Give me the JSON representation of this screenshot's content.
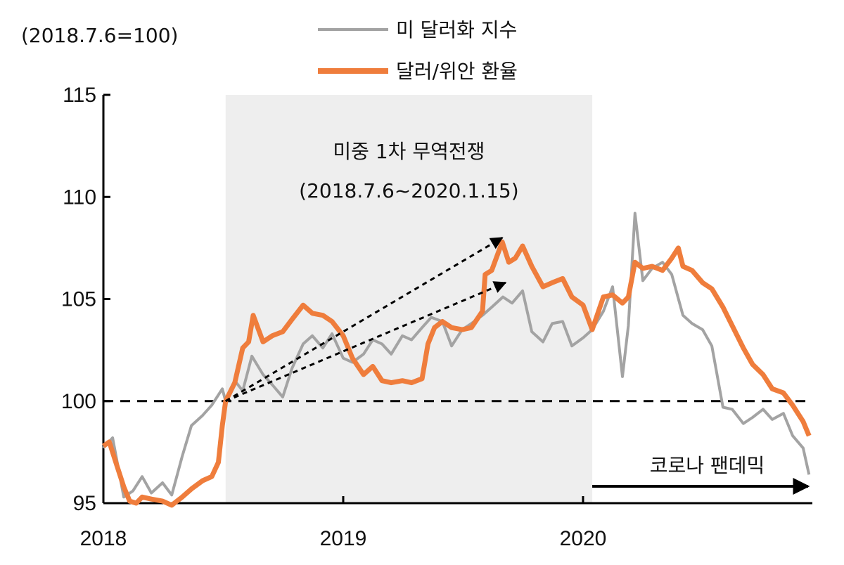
{
  "chart_data": {
    "type": "line",
    "unit_label": "(2018.7.6=100)",
    "ylim": [
      95,
      115
    ],
    "yticks": [
      95,
      100,
      105,
      110,
      115
    ],
    "xlim": [
      "2018-01-01",
      "2020-12-15"
    ],
    "xticks": [
      {
        "date": "2018-01-01",
        "label": "2018"
      },
      {
        "date": "2019-01-01",
        "label": "2019"
      },
      {
        "date": "2020-01-01",
        "label": "2020"
      }
    ],
    "legend_position": "top-center",
    "reference_line": {
      "y": 100,
      "style": "dashed"
    },
    "shaded_period": {
      "start": "2018-07-06",
      "end": "2020-01-15",
      "label_line1": "미중 1차 무역전쟁",
      "label_line2": "(2018.7.6~2020.1.15)"
    },
    "arrows": [
      {
        "from": [
          "2018-07-06",
          100
        ],
        "to": [
          "2019-08-31",
          108
        ]
      },
      {
        "from": [
          "2018-07-06",
          100
        ],
        "to": [
          "2019-09-05",
          105.8
        ]
      }
    ],
    "period_arrow": {
      "label": "코로나 팬데믹",
      "from": "2020-01-15",
      "to": "2020-12-15"
    },
    "series": [
      {
        "name": "미 달러화 지수",
        "color": "#a3a3a3",
        "points": [
          [
            "2018-01-01",
            97.7
          ],
          [
            "2018-01-15",
            98.2
          ],
          [
            "2018-02-01",
            95.3
          ],
          [
            "2018-02-15",
            95.6
          ],
          [
            "2018-03-01",
            96.3
          ],
          [
            "2018-03-15",
            95.5
          ],
          [
            "2018-04-01",
            96.0
          ],
          [
            "2018-04-15",
            95.4
          ],
          [
            "2018-05-01",
            97.3
          ],
          [
            "2018-05-15",
            98.8
          ],
          [
            "2018-06-01",
            99.3
          ],
          [
            "2018-06-15",
            99.8
          ],
          [
            "2018-07-01",
            100.6
          ],
          [
            "2018-07-06",
            100.0
          ],
          [
            "2018-07-20",
            101.0
          ],
          [
            "2018-08-01",
            100.5
          ],
          [
            "2018-08-15",
            102.2
          ],
          [
            "2018-09-01",
            101.3
          ],
          [
            "2018-09-15",
            100.8
          ],
          [
            "2018-10-01",
            100.2
          ],
          [
            "2018-10-15",
            101.6
          ],
          [
            "2018-11-01",
            102.8
          ],
          [
            "2018-11-15",
            103.2
          ],
          [
            "2018-12-01",
            102.6
          ],
          [
            "2018-12-15",
            103.3
          ],
          [
            "2019-01-01",
            102.1
          ],
          [
            "2019-01-15",
            101.9
          ],
          [
            "2019-02-01",
            102.3
          ],
          [
            "2019-02-15",
            103.0
          ],
          [
            "2019-03-01",
            102.8
          ],
          [
            "2019-03-15",
            102.3
          ],
          [
            "2019-04-01",
            103.2
          ],
          [
            "2019-04-15",
            103.0
          ],
          [
            "2019-05-01",
            103.6
          ],
          [
            "2019-05-15",
            104.1
          ],
          [
            "2019-06-01",
            103.9
          ],
          [
            "2019-06-15",
            102.7
          ],
          [
            "2019-07-01",
            103.5
          ],
          [
            "2019-07-15",
            103.8
          ],
          [
            "2019-08-01",
            104.2
          ],
          [
            "2019-08-15",
            104.6
          ],
          [
            "2019-09-01",
            105.1
          ],
          [
            "2019-09-15",
            104.8
          ],
          [
            "2019-10-01",
            105.4
          ],
          [
            "2019-10-15",
            103.4
          ],
          [
            "2019-11-01",
            102.9
          ],
          [
            "2019-11-15",
            103.8
          ],
          [
            "2019-12-01",
            103.9
          ],
          [
            "2019-12-15",
            102.7
          ],
          [
            "2020-01-01",
            103.1
          ],
          [
            "2020-01-15",
            103.5
          ],
          [
            "2020-02-01",
            104.4
          ],
          [
            "2020-02-15",
            105.6
          ],
          [
            "2020-03-01",
            101.2
          ],
          [
            "2020-03-10",
            103.7
          ],
          [
            "2020-03-20",
            109.2
          ],
          [
            "2020-04-01",
            105.9
          ],
          [
            "2020-04-15",
            106.5
          ],
          [
            "2020-05-01",
            106.8
          ],
          [
            "2020-05-15",
            106.2
          ],
          [
            "2020-06-01",
            104.2
          ],
          [
            "2020-06-15",
            103.8
          ],
          [
            "2020-07-01",
            103.5
          ],
          [
            "2020-07-15",
            102.7
          ],
          [
            "2020-08-01",
            99.7
          ],
          [
            "2020-08-15",
            99.6
          ],
          [
            "2020-09-01",
            98.9
          ],
          [
            "2020-09-15",
            99.2
          ],
          [
            "2020-10-01",
            99.6
          ],
          [
            "2020-10-15",
            99.1
          ],
          [
            "2020-11-01",
            99.4
          ],
          [
            "2020-11-15",
            98.3
          ],
          [
            "2020-12-01",
            97.7
          ],
          [
            "2020-12-10",
            96.4
          ]
        ]
      },
      {
        "name": "달러/위안 환율",
        "color": "#ef7d3c",
        "points": [
          [
            "2018-01-01",
            97.8
          ],
          [
            "2018-01-10",
            98.0
          ],
          [
            "2018-01-20",
            97.0
          ],
          [
            "2018-02-01",
            95.8
          ],
          [
            "2018-02-10",
            95.1
          ],
          [
            "2018-02-20",
            95.0
          ],
          [
            "2018-03-01",
            95.3
          ],
          [
            "2018-03-15",
            95.2
          ],
          [
            "2018-04-01",
            95.1
          ],
          [
            "2018-04-15",
            94.9
          ],
          [
            "2018-05-01",
            95.3
          ],
          [
            "2018-05-15",
            95.7
          ],
          [
            "2018-06-01",
            96.1
          ],
          [
            "2018-06-15",
            96.3
          ],
          [
            "2018-06-25",
            97.0
          ],
          [
            "2018-07-01",
            98.8
          ],
          [
            "2018-07-06",
            100.0
          ],
          [
            "2018-07-20",
            100.9
          ],
          [
            "2018-08-01",
            102.6
          ],
          [
            "2018-08-10",
            102.9
          ],
          [
            "2018-08-17",
            104.2
          ],
          [
            "2018-09-01",
            102.9
          ],
          [
            "2018-09-15",
            103.2
          ],
          [
            "2018-10-01",
            103.4
          ],
          [
            "2018-10-15",
            104.0
          ],
          [
            "2018-11-01",
            104.7
          ],
          [
            "2018-11-15",
            104.3
          ],
          [
            "2018-12-01",
            104.2
          ],
          [
            "2018-12-15",
            103.9
          ],
          [
            "2019-01-01",
            103.2
          ],
          [
            "2019-01-15",
            102.1
          ],
          [
            "2019-02-01",
            101.3
          ],
          [
            "2019-02-15",
            101.7
          ],
          [
            "2019-03-01",
            101.0
          ],
          [
            "2019-03-15",
            100.9
          ],
          [
            "2019-04-01",
            101.0
          ],
          [
            "2019-04-15",
            100.9
          ],
          [
            "2019-05-01",
            101.1
          ],
          [
            "2019-05-10",
            102.8
          ],
          [
            "2019-05-20",
            103.6
          ],
          [
            "2019-06-01",
            103.9
          ],
          [
            "2019-06-15",
            103.6
          ],
          [
            "2019-07-01",
            103.5
          ],
          [
            "2019-07-15",
            103.6
          ],
          [
            "2019-08-01",
            104.4
          ],
          [
            "2019-08-05",
            106.2
          ],
          [
            "2019-08-15",
            106.4
          ],
          [
            "2019-08-31",
            107.8
          ],
          [
            "2019-09-10",
            106.8
          ],
          [
            "2019-09-20",
            107.0
          ],
          [
            "2019-10-01",
            107.6
          ],
          [
            "2019-10-15",
            106.6
          ],
          [
            "2019-11-01",
            105.6
          ],
          [
            "2019-11-15",
            105.8
          ],
          [
            "2019-12-01",
            106.0
          ],
          [
            "2019-12-15",
            105.1
          ],
          [
            "2020-01-01",
            104.7
          ],
          [
            "2020-01-15",
            103.5
          ],
          [
            "2020-02-01",
            105.1
          ],
          [
            "2020-02-15",
            105.2
          ],
          [
            "2020-03-01",
            104.8
          ],
          [
            "2020-03-10",
            105.1
          ],
          [
            "2020-03-20",
            106.8
          ],
          [
            "2020-04-01",
            106.5
          ],
          [
            "2020-04-15",
            106.6
          ],
          [
            "2020-05-01",
            106.4
          ],
          [
            "2020-05-15",
            107.0
          ],
          [
            "2020-05-25",
            107.5
          ],
          [
            "2020-06-01",
            106.6
          ],
          [
            "2020-06-15",
            106.4
          ],
          [
            "2020-07-01",
            105.8
          ],
          [
            "2020-07-15",
            105.5
          ],
          [
            "2020-08-01",
            104.6
          ],
          [
            "2020-08-15",
            103.7
          ],
          [
            "2020-09-01",
            102.6
          ],
          [
            "2020-09-15",
            101.8
          ],
          [
            "2020-10-01",
            101.3
          ],
          [
            "2020-10-15",
            100.6
          ],
          [
            "2020-11-01",
            100.4
          ],
          [
            "2020-11-15",
            99.8
          ],
          [
            "2020-12-01",
            99.0
          ],
          [
            "2020-12-10",
            98.3
          ]
        ]
      }
    ]
  }
}
